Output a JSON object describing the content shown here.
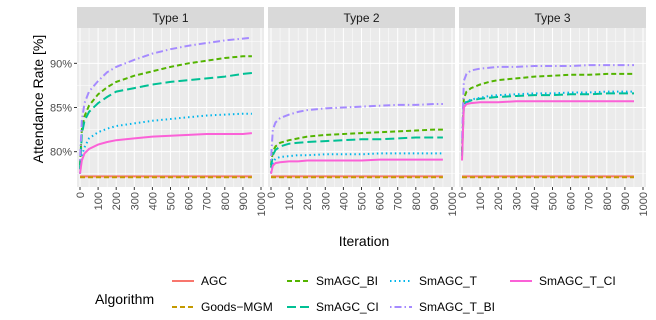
{
  "chart_data": {
    "type": "line",
    "xlabel": "Iteration",
    "ylabel": "Attendance Rate [%]",
    "xlim": [
      0,
      1000
    ],
    "ylim": [
      76,
      94
    ],
    "x_ticks": [
      0,
      100,
      200,
      300,
      400,
      500,
      600,
      700,
      800,
      900,
      1000
    ],
    "y_ticks": [
      80,
      85,
      90
    ],
    "y_tick_labels": [
      "80%",
      "85%",
      "90%"
    ],
    "grid": true,
    "legend": {
      "title": "Algorithm",
      "position": "bottom",
      "entries": [
        "AGC",
        "Goods−MGM",
        "SmAGC_BI",
        "SmAGC_CI",
        "SmAGC_T",
        "SmAGC_T_BI",
        "SmAGC_T_CI"
      ]
    },
    "series_styles": [
      {
        "name": "AGC",
        "color": "#F8766D",
        "dash": "solid"
      },
      {
        "name": "Goods−MGM",
        "color": "#C49A00",
        "dash": "dashed"
      },
      {
        "name": "SmAGC_BI",
        "color": "#53B400",
        "dash": "dashed"
      },
      {
        "name": "SmAGC_CI",
        "color": "#00C094",
        "dash": "longdash"
      },
      {
        "name": "SmAGC_T",
        "color": "#00B6EB",
        "dash": "dotted"
      },
      {
        "name": "SmAGC_T_BI",
        "color": "#A58AFF",
        "dash": "dotdash"
      },
      {
        "name": "SmAGC_T_CI",
        "color": "#FB61D7",
        "dash": "solid"
      }
    ],
    "x": [
      0,
      10,
      25,
      50,
      100,
      150,
      200,
      300,
      400,
      500,
      600,
      700,
      800,
      900,
      950
    ],
    "facets": [
      {
        "title": "Type 1",
        "series": [
          {
            "name": "AGC",
            "values": [
              77.2,
              77.2,
              77.2,
              77.2,
              77.2,
              77.2,
              77.2,
              77.2,
              77.2,
              77.2,
              77.2,
              77.2,
              77.2,
              77.2,
              77.2
            ]
          },
          {
            "name": "Goods−MGM",
            "values": [
              77.1,
              77.1,
              77.1,
              77.1,
              77.1,
              77.1,
              77.1,
              77.1,
              77.1,
              77.1,
              77.1,
              77.1,
              77.1,
              77.1,
              77.1
            ]
          },
          {
            "name": "SmAGC_BI",
            "values": [
              78.5,
              82.5,
              84.0,
              85.2,
              86.5,
              87.3,
              87.9,
              88.6,
              89.1,
              89.6,
              90.0,
              90.3,
              90.6,
              90.8,
              90.8
            ]
          },
          {
            "name": "SmAGC_CI",
            "values": [
              78.0,
              82.0,
              83.5,
              84.5,
              85.5,
              86.2,
              86.8,
              87.2,
              87.6,
              87.9,
              88.1,
              88.3,
              88.5,
              88.8,
              88.9
            ]
          },
          {
            "name": "SmAGC_T",
            "values": [
              77.5,
              79.5,
              80.5,
              81.5,
              82.2,
              82.6,
              82.9,
              83.2,
              83.5,
              83.7,
              83.9,
              84.1,
              84.2,
              84.3,
              84.3
            ]
          },
          {
            "name": "SmAGC_T_BI",
            "values": [
              79.0,
              83.5,
              85.5,
              86.8,
              88.0,
              89.0,
              89.6,
              90.4,
              91.1,
              91.6,
              92.0,
              92.3,
              92.6,
              92.8,
              92.9
            ]
          },
          {
            "name": "SmAGC_T_CI",
            "values": [
              77.5,
              79.0,
              79.8,
              80.3,
              80.8,
              81.1,
              81.3,
              81.5,
              81.7,
              81.8,
              81.9,
              82.0,
              82.0,
              82.0,
              82.1
            ]
          }
        ]
      },
      {
        "title": "Type 2",
        "series": [
          {
            "name": "AGC",
            "values": [
              77.2,
              77.2,
              77.2,
              77.2,
              77.2,
              77.2,
              77.2,
              77.2,
              77.2,
              77.2,
              77.2,
              77.2,
              77.2,
              77.2,
              77.2
            ]
          },
          {
            "name": "Goods−MGM",
            "values": [
              77.1,
              77.1,
              77.1,
              77.1,
              77.1,
              77.1,
              77.1,
              77.1,
              77.1,
              77.1,
              77.1,
              77.1,
              77.1,
              77.1,
              77.1
            ]
          },
          {
            "name": "SmAGC_BI",
            "values": [
              78.5,
              80.0,
              80.6,
              81.0,
              81.3,
              81.5,
              81.7,
              81.9,
              82.0,
              82.1,
              82.2,
              82.3,
              82.4,
              82.5,
              82.5
            ]
          },
          {
            "name": "SmAGC_CI",
            "values": [
              78.2,
              79.6,
              80.2,
              80.6,
              80.9,
              81.0,
              81.1,
              81.2,
              81.3,
              81.4,
              81.4,
              81.5,
              81.6,
              81.6,
              81.6
            ]
          },
          {
            "name": "SmAGC_T",
            "values": [
              77.6,
              78.8,
              79.2,
              79.4,
              79.5,
              79.6,
              79.6,
              79.7,
              79.7,
              79.7,
              79.8,
              79.8,
              79.8,
              79.8,
              79.8
            ]
          },
          {
            "name": "SmAGC_T_BI",
            "values": [
              79.0,
              82.5,
              83.3,
              83.8,
              84.2,
              84.5,
              84.7,
              84.9,
              85.0,
              85.1,
              85.2,
              85.3,
              85.3,
              85.4,
              85.4
            ]
          },
          {
            "name": "SmAGC_T_CI",
            "values": [
              77.5,
              78.4,
              78.7,
              78.8,
              78.9,
              78.9,
              79.0,
              79.0,
              79.0,
              79.0,
              79.1,
              79.1,
              79.1,
              79.1,
              79.1
            ]
          }
        ]
      },
      {
        "title": "Type 3",
        "series": [
          {
            "name": "AGC",
            "values": [
              77.2,
              77.2,
              77.2,
              77.2,
              77.2,
              77.2,
              77.2,
              77.2,
              77.2,
              77.2,
              77.2,
              77.2,
              77.2,
              77.2,
              77.2
            ]
          },
          {
            "name": "Goods−MGM",
            "values": [
              77.1,
              77.1,
              77.1,
              77.1,
              77.1,
              77.1,
              77.1,
              77.1,
              77.1,
              77.1,
              77.1,
              77.1,
              77.1,
              77.1,
              77.1
            ]
          },
          {
            "name": "SmAGC_BI",
            "values": [
              80.0,
              86.0,
              86.8,
              87.2,
              87.6,
              87.9,
              88.1,
              88.3,
              88.5,
              88.6,
              88.7,
              88.7,
              88.8,
              88.8,
              88.8
            ]
          },
          {
            "name": "SmAGC_CI",
            "values": [
              79.5,
              85.2,
              85.6,
              85.8,
              86.0,
              86.1,
              86.2,
              86.3,
              86.4,
              86.4,
              86.5,
              86.5,
              86.6,
              86.6,
              86.6
            ]
          },
          {
            "name": "SmAGC_T",
            "values": [
              79.5,
              85.3,
              85.7,
              85.9,
              86.1,
              86.3,
              86.4,
              86.5,
              86.6,
              86.6,
              86.7,
              86.7,
              86.8,
              86.8,
              86.8
            ]
          },
          {
            "name": "SmAGC_T_BI",
            "values": [
              81.0,
              88.0,
              88.8,
              89.2,
              89.4,
              89.5,
              89.6,
              89.6,
              89.7,
              89.7,
              89.7,
              89.8,
              89.8,
              89.8,
              89.8
            ]
          },
          {
            "name": "SmAGC_T_CI",
            "values": [
              79.0,
              85.0,
              85.4,
              85.5,
              85.6,
              85.6,
              85.6,
              85.7,
              85.7,
              85.7,
              85.7,
              85.7,
              85.7,
              85.7,
              85.7
            ]
          }
        ]
      }
    ]
  }
}
